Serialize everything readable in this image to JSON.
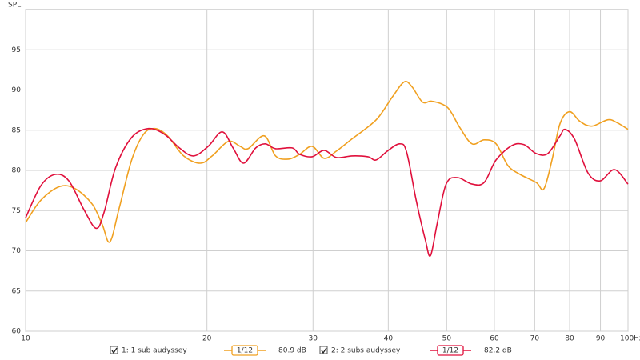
{
  "chart_data": {
    "type": "line",
    "ylabel": "SPL",
    "log_x": true,
    "grid": true,
    "xlim": [
      10,
      100
    ],
    "xticks": [
      10,
      20,
      30,
      40,
      50,
      60,
      70,
      80,
      90,
      {
        "value": 100,
        "label": "100Hz"
      }
    ],
    "ylim": [
      60,
      100
    ],
    "yticks": [
      60,
      65,
      70,
      75,
      80,
      85,
      90,
      95
    ],
    "series": [
      {
        "name": "1: 1 sub audyssey",
        "color": "#f0a020",
        "checked": true,
        "smoothing": "1/12",
        "level": "80.9 dB",
        "x": [
          10.0,
          10.6,
          11.4,
          12.1,
          12.9,
          13.4,
          13.8,
          14.3,
          15.0,
          15.7,
          16.4,
          17.2,
          18.3,
          19.5,
          20.4,
          21.7,
          22.7,
          23.4,
          24.9,
          26.0,
          27.3,
          28.5,
          29.9,
          31.3,
          32.8,
          34.8,
          38.2,
          40.6,
          42.5,
          43.8,
          45.6,
          47.3,
          50.2,
          52.6,
          55.1,
          57.7,
          60.4,
          63.2,
          66.2,
          70.4,
          72.5,
          74.8,
          77.1,
          80.0,
          83.2,
          87.1,
          92.6,
          96.1,
          100
        ],
        "values": [
          73.5,
          76.3,
          78.0,
          77.7,
          75.8,
          73.3,
          71.1,
          75.3,
          81.3,
          84.5,
          85.2,
          84.3,
          81.8,
          80.9,
          81.8,
          83.6,
          83.0,
          82.7,
          84.3,
          81.8,
          81.4,
          82.0,
          83.0,
          81.5,
          82.4,
          83.9,
          86.3,
          89.1,
          91.0,
          90.4,
          88.5,
          88.6,
          87.8,
          85.3,
          83.3,
          83.8,
          83.3,
          80.6,
          79.5,
          78.5,
          77.7,
          81.3,
          85.8,
          87.3,
          86.1,
          85.5,
          86.3,
          85.9,
          85.1
        ]
      },
      {
        "name": "2: 2 subs audyssey",
        "color": "#e0103c",
        "checked": true,
        "smoothing": "1/12",
        "level": "82.2 dB",
        "x": [
          10.0,
          10.6,
          11.2,
          11.8,
          12.5,
          13.1,
          13.5,
          14.1,
          15.0,
          16.0,
          17.0,
          18.0,
          19.0,
          20.1,
          21.2,
          22.1,
          23.0,
          24.1,
          25.0,
          26.0,
          27.7,
          28.5,
          29.9,
          31.3,
          32.8,
          34.8,
          37.0,
          38.2,
          40.0,
          41.8,
          42.9,
          44.5,
          46.1,
          47.0,
          48.2,
          49.9,
          52.1,
          55.1,
          57.7,
          60.4,
          64.2,
          67.2,
          70.4,
          73.6,
          77.1,
          78.6,
          81.5,
          85.8,
          89.9,
          95.0,
          100
        ],
        "values": [
          74.1,
          78.1,
          79.5,
          78.7,
          75.1,
          72.8,
          74.8,
          80.3,
          84.1,
          85.2,
          84.5,
          82.8,
          81.8,
          83.0,
          84.8,
          82.8,
          80.9,
          82.8,
          83.3,
          82.7,
          82.8,
          82.0,
          81.7,
          82.5,
          81.6,
          81.8,
          81.7,
          81.3,
          82.5,
          83.3,
          82.3,
          76.3,
          71.3,
          69.4,
          73.3,
          78.3,
          79.1,
          78.3,
          78.5,
          81.3,
          83.1,
          83.2,
          82.1,
          82.1,
          84.3,
          85.1,
          83.9,
          79.7,
          78.7,
          80.1,
          78.3
        ]
      }
    ]
  }
}
